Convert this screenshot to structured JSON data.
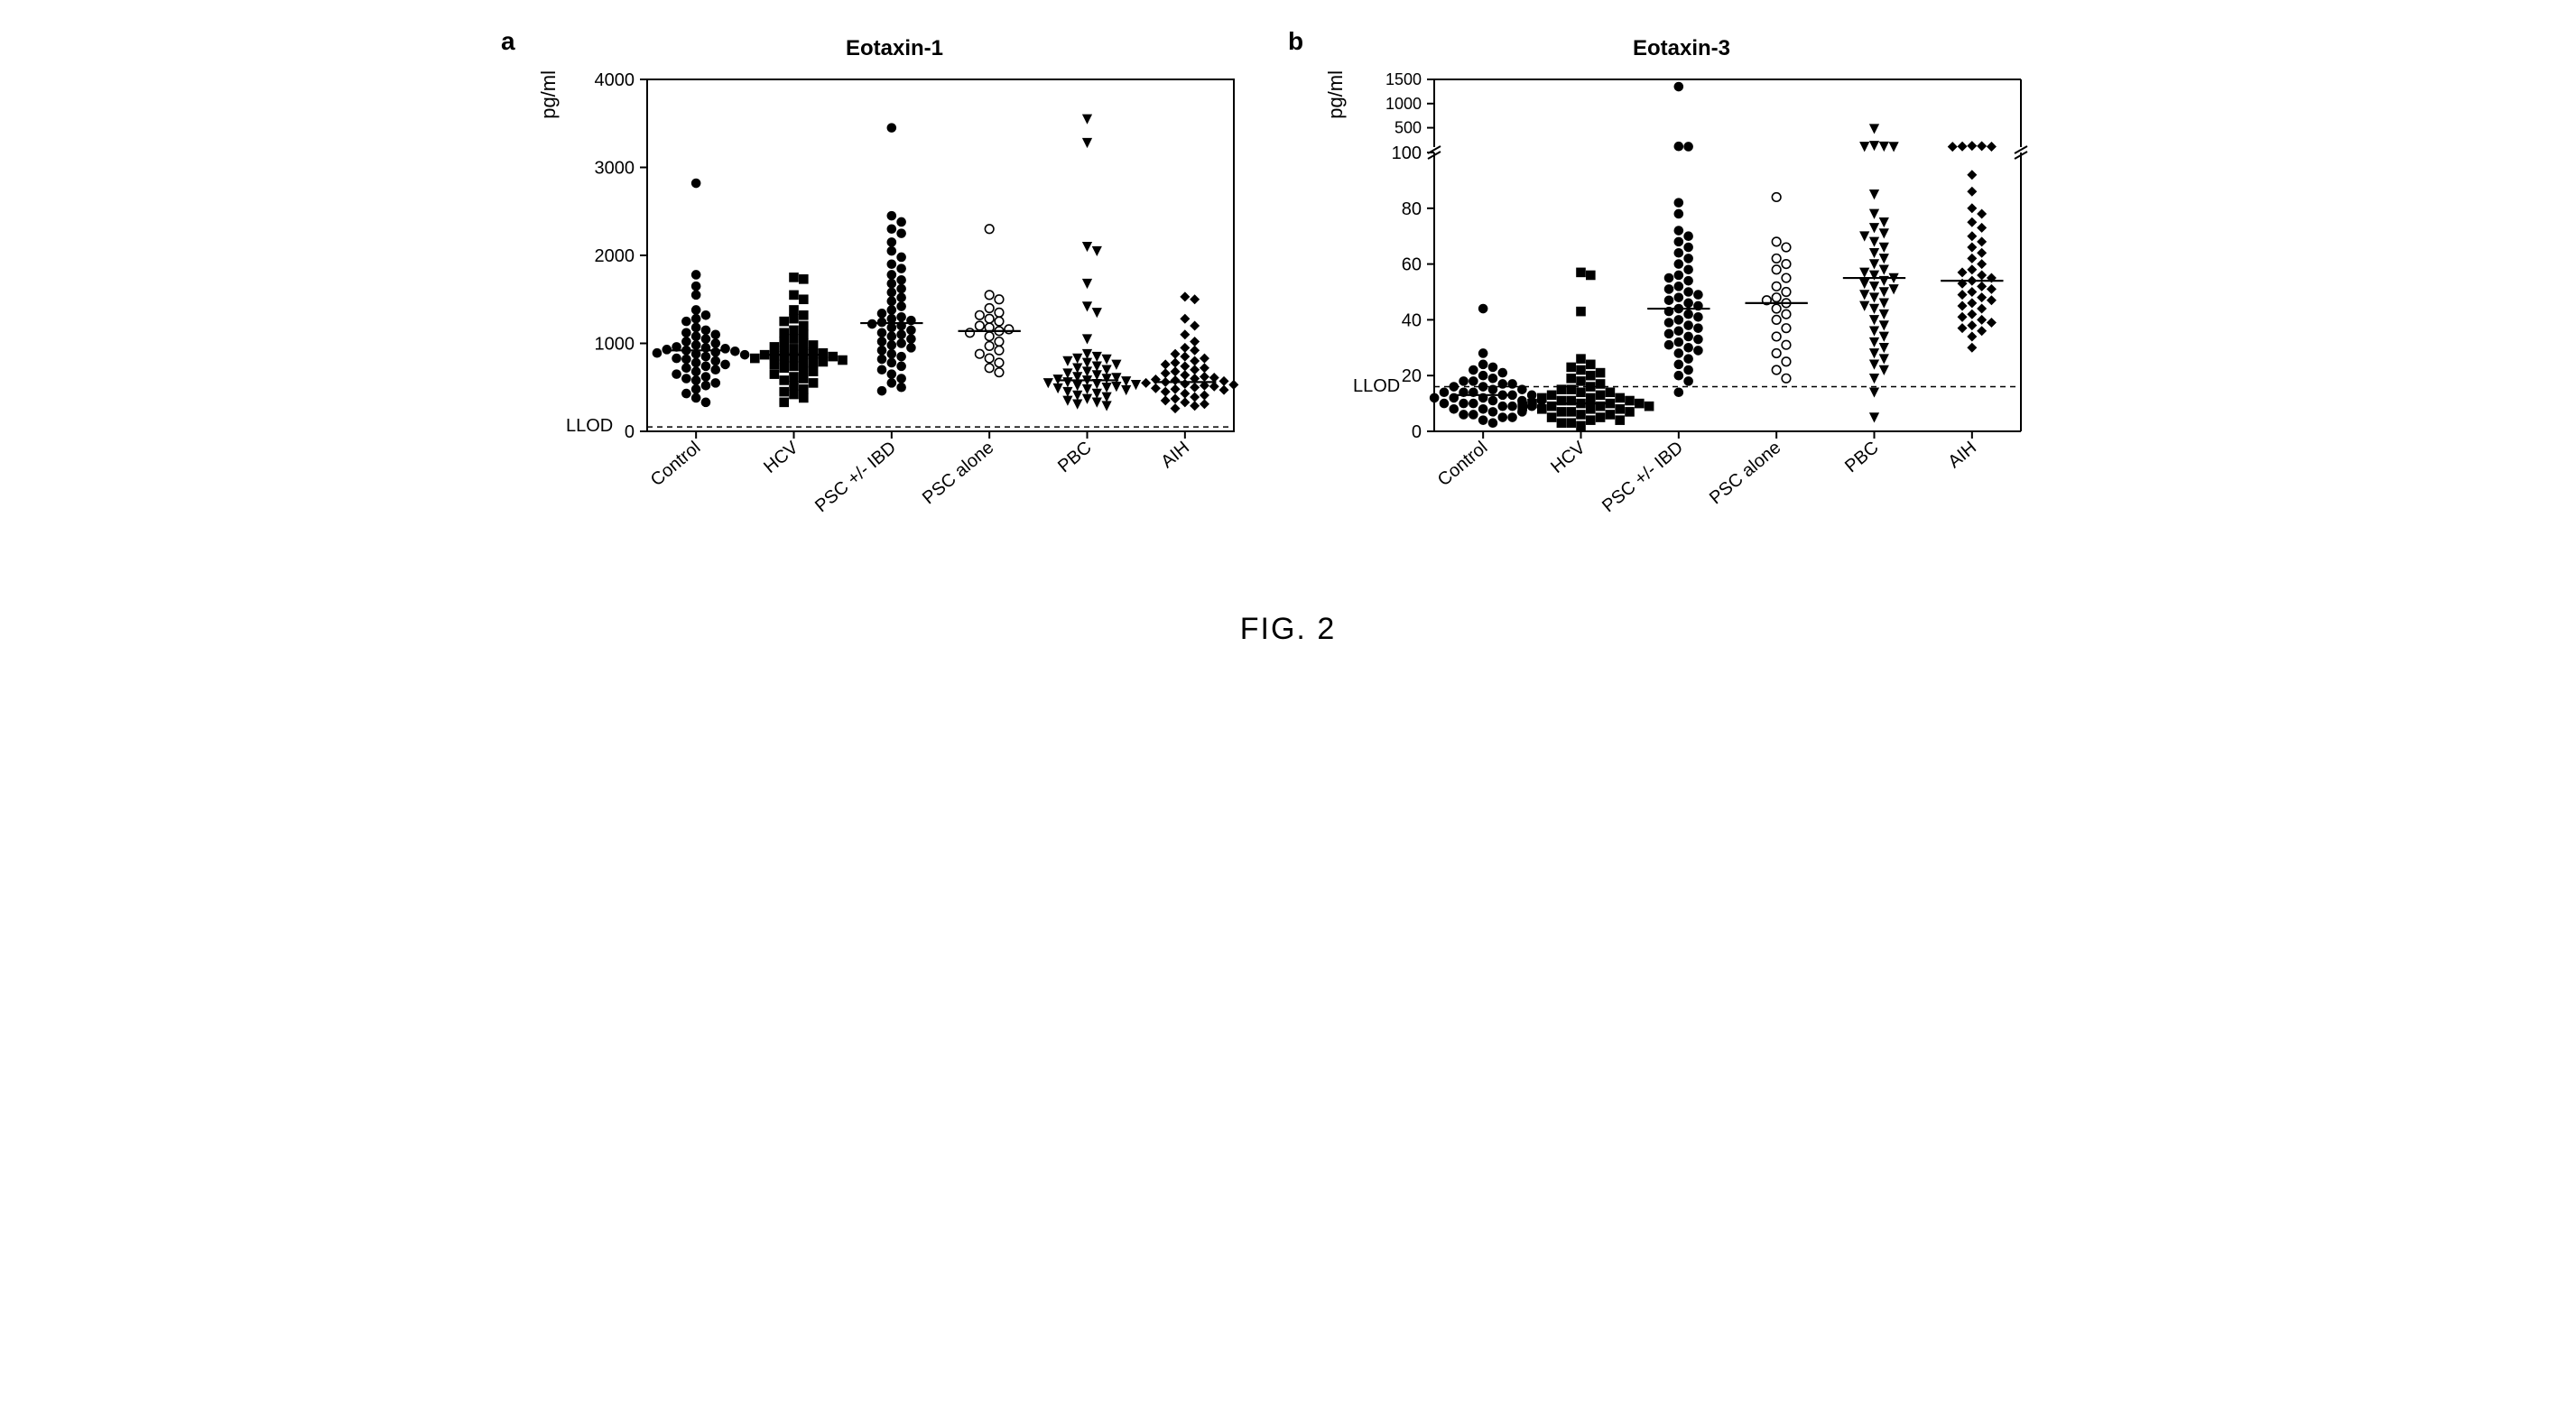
{
  "figure_caption": "FIG. 2",
  "panels": {
    "a": {
      "label": "a",
      "title": "Eotaxin-1",
      "ylabel": "pg/ml",
      "llod_text": "LLOD",
      "llod_value": 50,
      "ylim": [
        0,
        4000
      ],
      "yticks": [
        0,
        1000,
        2000,
        3000,
        4000
      ],
      "categories": [
        "Control",
        "HCV",
        "PSC +/- IBD",
        "PSC alone",
        "PBC",
        "AIH"
      ],
      "markers": [
        "circle-filled",
        "square-filled",
        "circle-filled",
        "circle-open",
        "triangle-down-filled",
        "diamond-filled"
      ],
      "medians": [
        920,
        870,
        1230,
        1140,
        580,
        560
      ],
      "colors": {
        "axis": "#000000",
        "marker_fill": "#000000",
        "marker_stroke": "#000000",
        "median_line": "#000000",
        "llod_line": "#000000",
        "background": "#ffffff"
      },
      "marker_size": 6,
      "line_width": 2,
      "title_fontsize": 24,
      "label_fontsize": 22,
      "tick_fontsize": 20,
      "data": {
        "Control": [
          2820,
          1780,
          1650,
          1550,
          1380,
          1320,
          1280,
          1250,
          1180,
          1150,
          1120,
          1100,
          1080,
          1050,
          1020,
          1000,
          980,
          960,
          950,
          940,
          930,
          920,
          910,
          900,
          890,
          880,
          870,
          850,
          830,
          820,
          800,
          780,
          760,
          740,
          720,
          700,
          680,
          650,
          620,
          600,
          580,
          550,
          520,
          480,
          430,
          380,
          330
        ],
        "HCV": [
          1750,
          1730,
          1550,
          1500,
          1380,
          1320,
          1280,
          1250,
          1200,
          1150,
          1120,
          1100,
          1050,
          1020,
          1000,
          980,
          960,
          940,
          920,
          900,
          890,
          880,
          870,
          860,
          850,
          840,
          830,
          820,
          810,
          800,
          790,
          780,
          760,
          740,
          720,
          700,
          680,
          650,
          620,
          600,
          580,
          550,
          520,
          480,
          450,
          420,
          380,
          330
        ],
        "PSC +/- IBD": [
          3450,
          2450,
          2380,
          2300,
          2250,
          2150,
          2050,
          1980,
          1900,
          1850,
          1780,
          1720,
          1680,
          1620,
          1580,
          1520,
          1480,
          1420,
          1380,
          1340,
          1300,
          1280,
          1260,
          1240,
          1220,
          1200,
          1180,
          1150,
          1120,
          1100,
          1080,
          1050,
          1020,
          1000,
          980,
          950,
          920,
          880,
          850,
          820,
          780,
          740,
          700,
          650,
          600,
          550,
          500,
          460
        ],
        "PSC alone": [
          2300,
          1550,
          1500,
          1400,
          1350,
          1320,
          1280,
          1250,
          1200,
          1180,
          1160,
          1140,
          1120,
          1080,
          1020,
          970,
          920,
          880,
          830,
          780,
          720,
          670
        ],
        "PBC": [
          3550,
          3280,
          2100,
          2050,
          1680,
          1420,
          1350,
          1050,
          880,
          850,
          830,
          820,
          800,
          780,
          760,
          740,
          720,
          700,
          680,
          660,
          640,
          620,
          610,
          600,
          590,
          580,
          570,
          560,
          550,
          540,
          530,
          520,
          510,
          500,
          490,
          480,
          470,
          450,
          430,
          410,
          390,
          370,
          350,
          330,
          310,
          290
        ],
        "AIH": [
          1530,
          1500,
          1280,
          1200,
          1100,
          1020,
          950,
          920,
          880,
          850,
          830,
          800,
          780,
          760,
          740,
          720,
          700,
          680,
          660,
          640,
          620,
          610,
          600,
          590,
          580,
          570,
          560,
          550,
          540,
          530,
          520,
          510,
          500,
          490,
          480,
          470,
          450,
          430,
          410,
          390,
          370,
          350,
          330,
          310,
          290,
          260
        ]
      }
    },
    "b": {
      "label": "b",
      "title": "Eotaxin-3",
      "ylabel": "pg/ml",
      "llod_text": "LLOD",
      "llod_value": 16,
      "axis_break": true,
      "ylim_lower": [
        0,
        100
      ],
      "yticks_lower": [
        0,
        20,
        40,
        60,
        80,
        100
      ],
      "ylim_upper": [
        100,
        1500
      ],
      "yticks_upper": [
        500,
        1000,
        1500
      ],
      "categories": [
        "Control",
        "HCV",
        "PSC +/- IBD",
        "PSC alone",
        "PBC",
        "AIH"
      ],
      "markers": [
        "circle-filled",
        "square-filled",
        "circle-filled",
        "circle-open",
        "triangle-down-filled",
        "diamond-filled"
      ],
      "medians": [
        13,
        10,
        44,
        46,
        55,
        54
      ],
      "colors": {
        "axis": "#000000",
        "marker_fill": "#000000",
        "marker_stroke": "#000000",
        "median_line": "#000000",
        "llod_line": "#000000",
        "background": "#ffffff"
      },
      "marker_size": 6,
      "line_width": 2,
      "title_fontsize": 24,
      "label_fontsize": 22,
      "tick_fontsize": 20,
      "data": {
        "Control": [
          44,
          28,
          24,
          23,
          22,
          21,
          20,
          19,
          18,
          18,
          17,
          17,
          16,
          16,
          15,
          15,
          14,
          14,
          14,
          13,
          13,
          13,
          12,
          12,
          12,
          11,
          11,
          11,
          10,
          10,
          10,
          9,
          9,
          9,
          8,
          8,
          7,
          7,
          6,
          6,
          5,
          5,
          4,
          3
        ],
        "HCV": [
          57,
          56,
          43,
          26,
          24,
          23,
          22,
          21,
          20,
          19,
          18,
          17,
          16,
          15,
          15,
          14,
          14,
          13,
          13,
          12,
          12,
          12,
          11,
          11,
          11,
          10,
          10,
          10,
          10,
          9,
          9,
          9,
          9,
          8,
          8,
          8,
          7,
          7,
          7,
          6,
          6,
          5,
          5,
          4,
          4,
          3,
          3,
          2
        ],
        "PSC +/- IBD": [
          1350,
          115,
          110,
          82,
          78,
          72,
          70,
          68,
          66,
          64,
          62,
          60,
          58,
          56,
          55,
          54,
          52,
          51,
          50,
          49,
          48,
          47,
          46,
          45,
          44,
          43,
          42,
          41,
          40,
          39,
          38,
          37,
          36,
          35,
          34,
          33,
          32,
          31,
          30,
          29,
          28,
          26,
          24,
          22,
          20,
          18,
          14
        ],
        "PSC alone": [
          84,
          68,
          66,
          62,
          60,
          58,
          55,
          52,
          50,
          48,
          47,
          46,
          44,
          42,
          40,
          37,
          34,
          31,
          28,
          25,
          22,
          19
        ],
        "PBC": [
          480,
          130,
          115,
          110,
          108,
          85,
          78,
          75,
          73,
          71,
          70,
          68,
          66,
          64,
          62,
          60,
          58,
          57,
          56,
          55,
          54,
          53,
          52,
          51,
          50,
          49,
          48,
          46,
          45,
          44,
          42,
          40,
          38,
          36,
          34,
          32,
          30,
          28,
          26,
          24,
          22,
          19,
          14,
          5
        ],
        "AIH": [
          125,
          120,
          115,
          110,
          108,
          92,
          86,
          80,
          78,
          75,
          73,
          70,
          68,
          66,
          64,
          62,
          60,
          58,
          57,
          56,
          55,
          54,
          53,
          52,
          51,
          50,
          49,
          48,
          47,
          46,
          45,
          44,
          42,
          41,
          40,
          39,
          38,
          37,
          36,
          34,
          30
        ]
      }
    }
  }
}
